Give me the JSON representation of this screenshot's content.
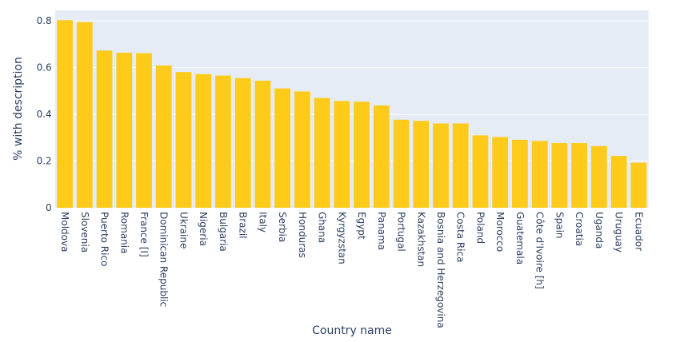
{
  "chart_data": {
    "type": "bar",
    "title": "",
    "xlabel": "Country name",
    "ylabel": "% with description",
    "ylim": [
      0,
      0.845
    ],
    "yticks": [
      0,
      0.2,
      0.4,
      0.6,
      0.8
    ],
    "ytick_labels": [
      "0",
      "0.2",
      "0.4",
      "0.6",
      "0.8"
    ],
    "grid": true,
    "bar_color": "#FECB1A",
    "plot_bg": "#E5ECF6",
    "categories": [
      "Moldova",
      "Slovenia",
      "Puerto Rico",
      "Romania",
      "France [I]",
      "Dominican Republic",
      "Ukraine",
      "Nigeria",
      "Bulgaria",
      "Brazil",
      "Italy",
      "Serbia",
      "Honduras",
      "Ghana",
      "Kyrgyzstan",
      "Egypt",
      "Panama",
      "Portugal",
      "Kazakhstan",
      "Bosnia and Herzegovina",
      "Costa Rica",
      "Poland",
      "Morocco",
      "Guatemala",
      "Côte d'Ivoire [h]",
      "Spain",
      "Croatia",
      "Uganda",
      "Uruguay",
      "Ecuador"
    ],
    "values": [
      0.803,
      0.795,
      0.673,
      0.664,
      0.662,
      0.609,
      0.581,
      0.572,
      0.566,
      0.555,
      0.544,
      0.511,
      0.498,
      0.47,
      0.457,
      0.454,
      0.438,
      0.377,
      0.372,
      0.361,
      0.361,
      0.31,
      0.303,
      0.291,
      0.286,
      0.277,
      0.277,
      0.264,
      0.222,
      0.193
    ]
  }
}
